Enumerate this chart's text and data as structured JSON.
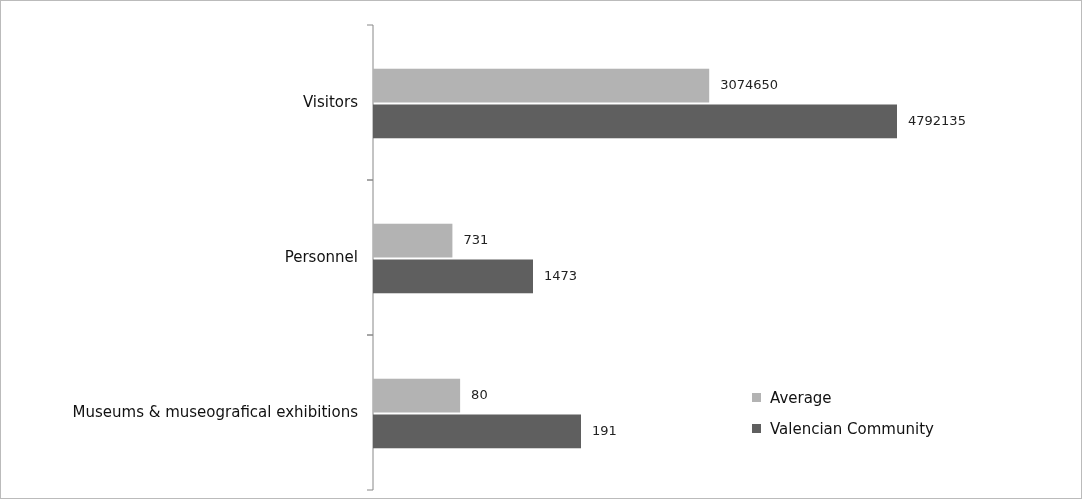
{
  "chart_data": [
    {
      "type": "bar",
      "orientation": "horizontal",
      "categories": [
        "Visitors"
      ],
      "tick_labels": "y",
      "data_labels": true,
      "series": [
        {
          "color": "#b3b3b3",
          "values": [
            3074650
          ]
        },
        {
          "color": "#5f5f5f",
          "values": [
            4792135
          ]
        }
      ]
    },
    {
      "type": "bar",
      "orientation": "horizontal",
      "categories": [
        "Personnel"
      ],
      "tick_labels": "y",
      "data_labels": true,
      "series": [
        {
          "color": "#b3b3b3",
          "values": [
            731
          ]
        },
        {
          "color": "#5f5f5f",
          "values": [
            1473
          ]
        }
      ]
    },
    {
      "type": "bar",
      "orientation": "horizontal",
      "categories": [
        "Museums & museografical exhibitions"
      ],
      "tick_labels": "y",
      "data_labels": true,
      "legend": "right",
      "series": [
        {
          "name": "Average",
          "color": "#b3b3b3",
          "values": [
            80
          ]
        },
        {
          "name": "Valencian Community",
          "color": "#5f5f5f",
          "values": [
            191
          ]
        }
      ]
    }
  ]
}
